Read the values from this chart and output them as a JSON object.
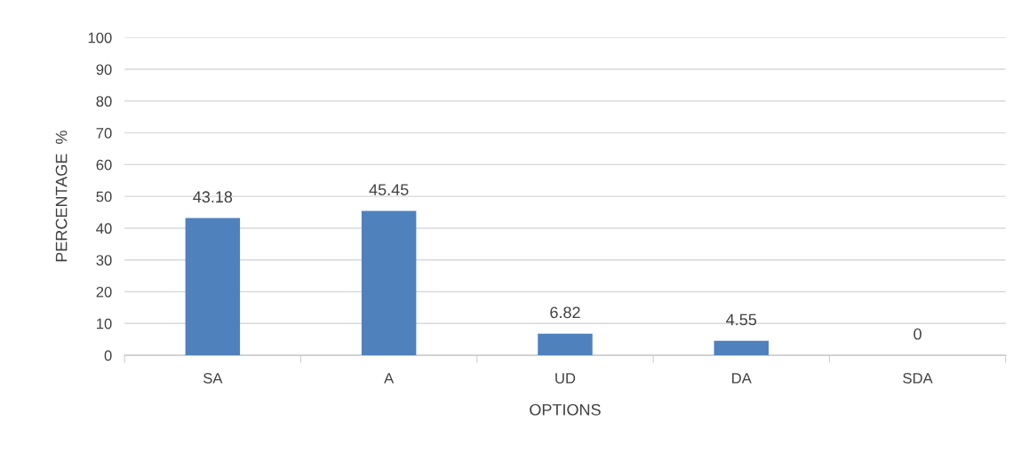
{
  "chart_data": {
    "type": "bar",
    "xlabel": "OPTIONS",
    "ylabel": "PERCENTAGE  %",
    "categories": [
      "SA",
      "A",
      "UD",
      "DA",
      "SDA"
    ],
    "values": [
      43.18,
      45.45,
      6.82,
      4.55,
      0
    ],
    "color": "#4f81bd",
    "ylim": [
      0,
      100
    ],
    "yticks": [
      0,
      10,
      20,
      30,
      40,
      50,
      60,
      70,
      80,
      90,
      100
    ],
    "grid": "y",
    "data_labels": true
  }
}
